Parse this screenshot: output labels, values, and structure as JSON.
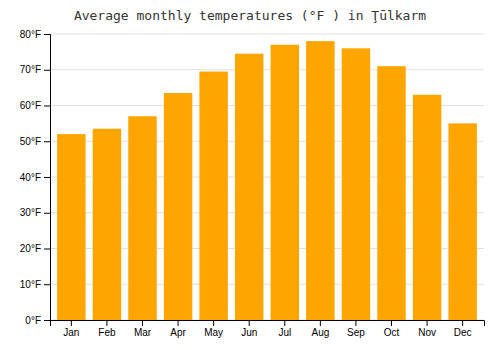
{
  "chart_data": {
    "type": "bar",
    "title": "Average monthly temperatures (°F ) in Ţūlkarm",
    "categories": [
      "Jan",
      "Feb",
      "Mar",
      "Apr",
      "May",
      "Jun",
      "Jul",
      "Aug",
      "Sep",
      "Oct",
      "Nov",
      "Dec"
    ],
    "values": [
      52,
      53.5,
      57,
      63.5,
      69.5,
      74.5,
      77,
      78,
      76,
      71,
      63,
      55
    ],
    "color": "#FFA500",
    "ylim": [
      0,
      80
    ],
    "yticks": [
      {
        "value": 0,
        "label": "0°F"
      },
      {
        "value": 10,
        "label": "10°F"
      },
      {
        "value": 20,
        "label": "20°F"
      },
      {
        "value": 30,
        "label": "30°F"
      },
      {
        "value": 40,
        "label": "40°F"
      },
      {
        "value": 50,
        "label": "50°F"
      },
      {
        "value": 60,
        "label": "60°F"
      },
      {
        "value": 70,
        "label": "70°F"
      },
      {
        "value": 80,
        "label": "80°F"
      }
    ],
    "grid": true
  }
}
